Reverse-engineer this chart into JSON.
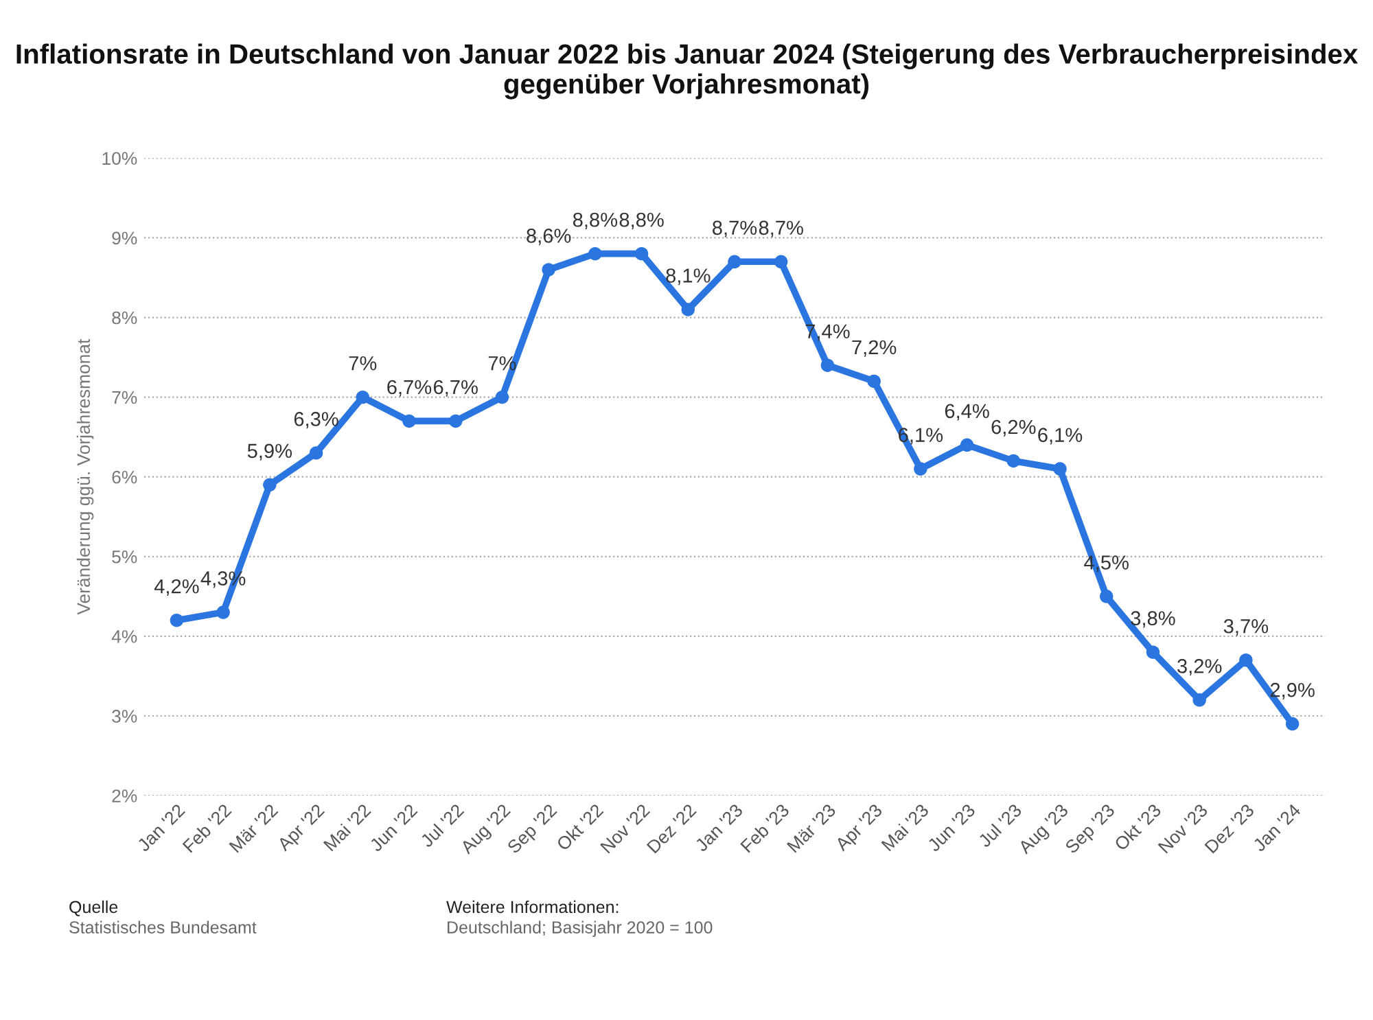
{
  "chart_data": {
    "type": "line",
    "title": "Inflationsrate in Deutschland von Januar 2022 bis Januar 2024 (Steigerung des Verbraucherpreisindex gegenüber Vorjahresmonat)",
    "ylabel": "Veränderung ggü. Vorjahresmonat",
    "categories": [
      "Jan '22",
      "Feb '22",
      "Mär '22",
      "Apr '22",
      "Mai '22",
      "Jun '22",
      "Jul '22",
      "Aug '22",
      "Sep '22",
      "Okt '22",
      "Nov '22",
      "Dez '22",
      "Jan '23",
      "Feb '23",
      "Mär '23",
      "Apr '23",
      "Mai '23",
      "Jun '23",
      "Jul '23",
      "Aug '23",
      "Sep '23",
      "Okt '23",
      "Nov '23",
      "Dez '23",
      "Jan '24"
    ],
    "series": [
      {
        "color": "#2a75e0",
        "values": [
          4.2,
          4.3,
          5.9,
          6.3,
          7,
          6.7,
          6.7,
          7,
          8.6,
          8.8,
          8.8,
          8.1,
          8.7,
          8.7,
          7.4,
          7.2,
          6.1,
          6.4,
          6.2,
          6.1,
          4.5,
          3.8,
          3.2,
          3.7,
          2.9
        ],
        "value_labels": [
          "4,2%",
          "4,3%",
          "5,9%",
          "6,3%",
          "7%",
          "6,7%",
          "6,7%",
          "7%",
          "8,6%",
          "8,8%",
          "8,8%",
          "8,1%",
          "8,7%",
          "8,7%",
          "7,4%",
          "7,2%",
          "6,1%",
          "6,4%",
          "6,2%",
          "6,1%",
          "4,5%",
          "3,8%",
          "3,2%",
          "3,7%",
          "2,9%"
        ]
      }
    ],
    "ylim": [
      2,
      10
    ],
    "yticks": [
      {
        "value": 2,
        "label": "2%"
      },
      {
        "value": 3,
        "label": "3%"
      },
      {
        "value": 4,
        "label": "4%"
      },
      {
        "value": 5,
        "label": "5%"
      },
      {
        "value": 6,
        "label": "6%"
      },
      {
        "value": 7,
        "label": "7%"
      },
      {
        "value": 8,
        "label": "8%"
      },
      {
        "value": 9,
        "label": "9%"
      },
      {
        "value": 10,
        "label": "10%"
      }
    ],
    "grid": "y",
    "marker": "circle",
    "line_style": "solid",
    "annotations": [
      "Quelle",
      "Statistisches Bundesamt",
      "Weitere Informationen:",
      "Deutschland; Basisjahr 2020 = 100"
    ]
  }
}
